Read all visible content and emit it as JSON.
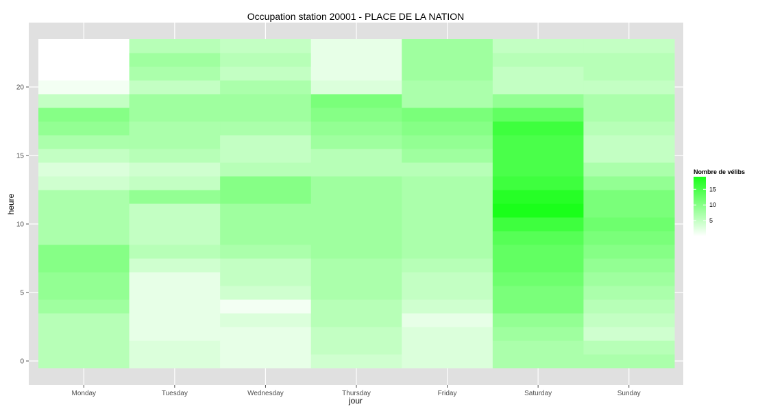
{
  "chart_data": {
    "type": "heatmap",
    "title": "Occupation station 20001 - PLACE DE LA NATION",
    "xlabel": "jour",
    "ylabel": "heure",
    "x_categories": [
      "Monday",
      "Tuesday",
      "Wednesday",
      "Thursday",
      "Friday",
      "Saturday",
      "Sunday"
    ],
    "y_range": [
      -0.5,
      23.5
    ],
    "y_ticks": [
      0,
      5,
      10,
      15,
      20
    ],
    "hours": [
      0,
      1,
      2,
      3,
      4,
      5,
      6,
      7,
      8,
      9,
      10,
      11,
      12,
      13,
      14,
      15,
      16,
      17,
      18,
      19,
      20,
      21,
      22,
      23
    ],
    "values": [
      [
        6,
        3,
        2,
        4,
        3,
        7,
        7
      ],
      [
        6,
        3,
        2,
        5,
        3,
        7,
        6
      ],
      [
        6,
        2,
        2,
        5,
        3,
        8,
        4
      ],
      [
        6,
        2,
        3,
        6,
        2,
        9,
        5
      ],
      [
        8,
        2,
        1,
        6,
        4,
        11,
        6
      ],
      [
        9,
        2,
        4,
        7,
        5,
        11,
        7
      ],
      [
        9,
        2,
        5,
        7,
        5,
        12,
        8
      ],
      [
        10,
        4,
        5,
        7,
        6,
        13,
        9
      ],
      [
        10,
        6,
        7,
        8,
        7,
        13,
        10
      ],
      [
        7,
        5,
        8,
        8,
        7,
        14,
        11
      ],
      [
        7,
        5,
        8,
        8,
        7,
        16,
        12
      ],
      [
        7,
        5,
        8,
        8,
        7,
        19,
        11
      ],
      [
        7,
        9,
        10,
        8,
        7,
        18,
        11
      ],
      [
        4,
        5,
        10,
        8,
        7,
        16,
        9
      ],
      [
        3,
        4,
        6,
        6,
        6,
        15,
        7
      ],
      [
        5,
        6,
        5,
        6,
        8,
        15,
        5
      ],
      [
        7,
        7,
        5,
        8,
        9,
        15,
        5
      ],
      [
        9,
        7,
        7,
        9,
        10,
        16,
        6
      ],
      [
        10,
        8,
        8,
        10,
        11,
        13,
        7
      ],
      [
        5,
        8,
        8,
        11,
        7,
        9,
        7
      ],
      [
        1,
        5,
        7,
        3,
        7,
        5,
        5
      ],
      [
        0,
        7,
        5,
        2,
        8,
        5,
        6
      ],
      [
        0,
        8,
        6,
        2,
        8,
        6,
        6
      ],
      [
        0,
        6,
        5,
        2,
        8,
        5,
        5
      ]
    ],
    "color_low": "#ffffff",
    "color_high": "#1aff1a",
    "value_range": [
      0,
      19
    ],
    "legend": {
      "title": "Nombre de vélibs",
      "position": "right",
      "ticks": [
        5,
        10,
        15
      ]
    },
    "grid": true,
    "panel_color": "#e0e0e0",
    "grid_color": "#ffffff"
  }
}
